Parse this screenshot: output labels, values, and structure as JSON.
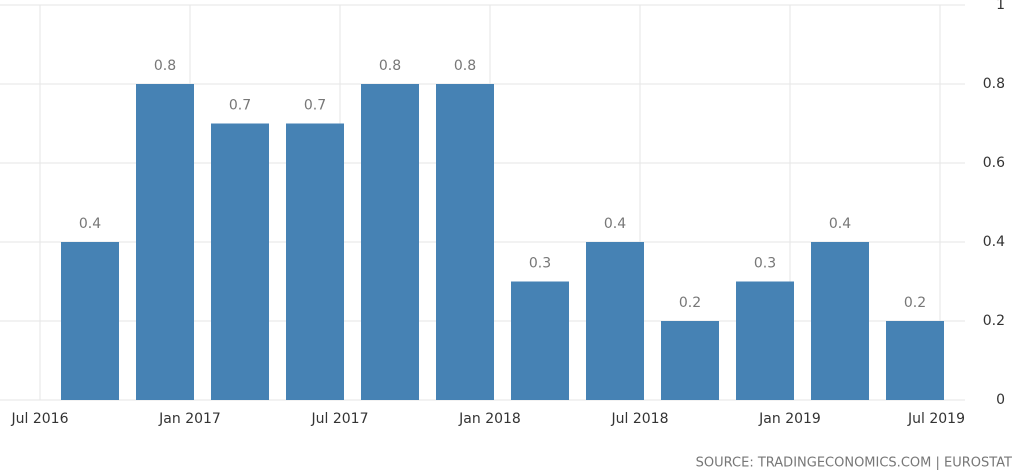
{
  "chart_data": {
    "type": "bar",
    "categories": [
      null,
      null,
      null,
      null,
      null,
      null,
      null,
      null,
      null,
      null,
      null,
      null
    ],
    "values": [
      0.4,
      0.8,
      0.7,
      0.7,
      0.8,
      0.8,
      0.3,
      0.4,
      0.2,
      0.3,
      0.4,
      0.2
    ],
    "color": "#4682b4",
    "xtick_labels": [
      "Jul 2016",
      "Jan 2017",
      "Jul 2017",
      "Jan 2018",
      "Jul 2018",
      "Jan 2019",
      "Jul 2019"
    ],
    "ylim": [
      0,
      1
    ],
    "yticks": [
      0,
      0.2,
      0.4,
      0.6,
      0.8,
      1
    ],
    "grid": true,
    "source": "SOURCE: TRADINGECONOMICS.COM | EUROSTAT"
  }
}
